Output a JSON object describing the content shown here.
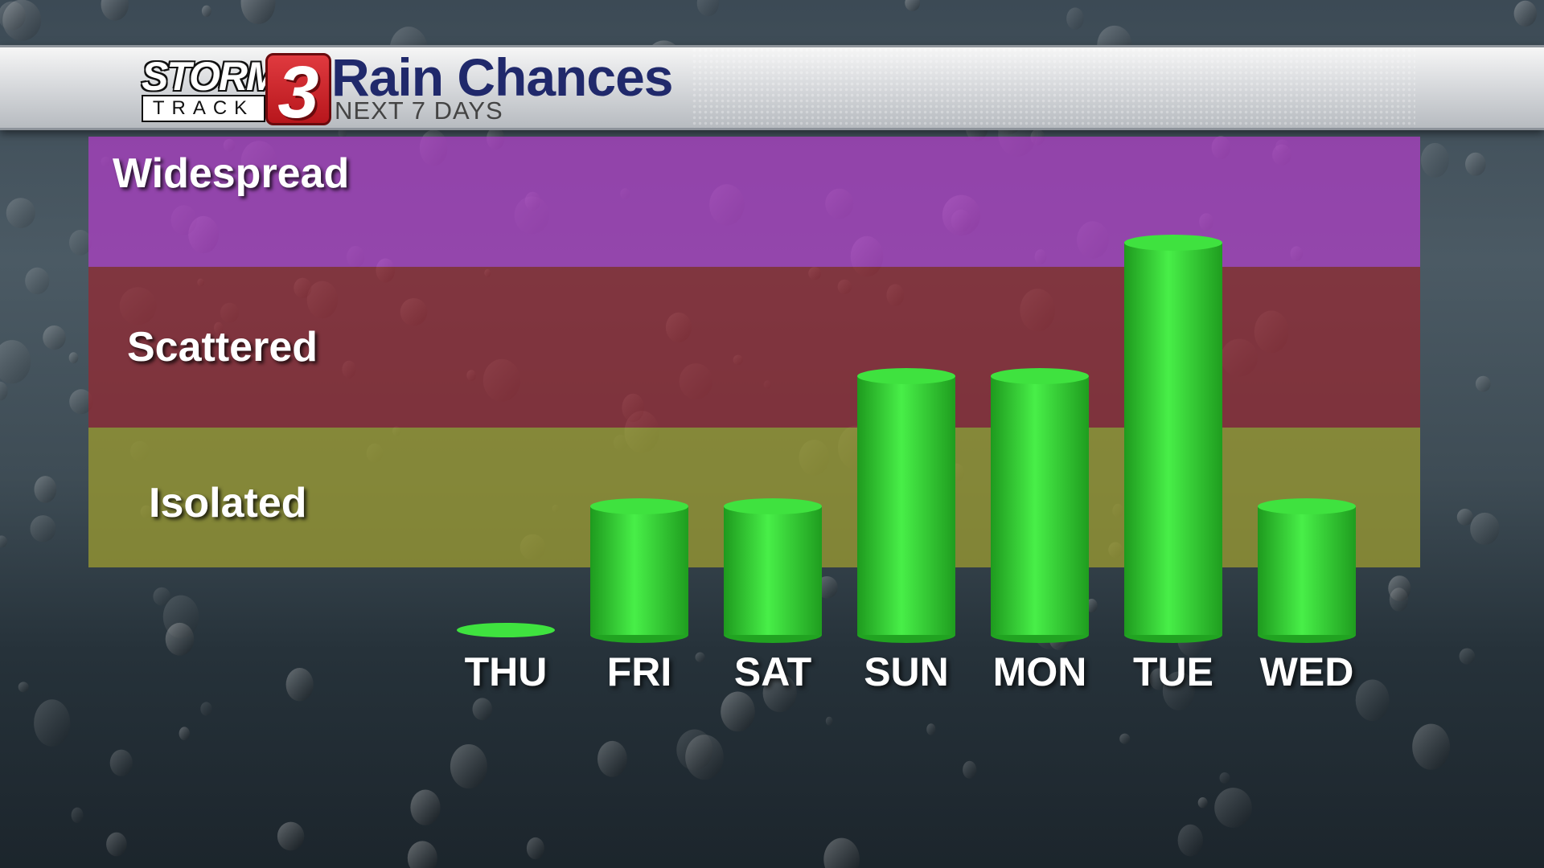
{
  "header": {
    "logo_top": "STORM",
    "logo_bottom": "TRACK",
    "logo_number": "3",
    "title": "Rain Chances",
    "subtitle": "NEXT 7 DAYS"
  },
  "chart_data": {
    "type": "bar",
    "categories": [
      "THU",
      "FRI",
      "SAT",
      "SUN",
      "MON",
      "TUE",
      "WED"
    ],
    "values": [
      0,
      1,
      1,
      2,
      2,
      3,
      1
    ],
    "value_scale_levels": [
      "Isolated",
      "Scattered",
      "Widespread"
    ],
    "title": "Rain Chances",
    "subtitle": "NEXT 7 DAYS",
    "ylim": [
      0,
      3
    ],
    "bar_color": "#3cdc3c",
    "band_colors": {
      "Widespread": "#b03ec8",
      "Scattered": "#962832",
      "Isolated": "#969632"
    },
    "grid": false
  }
}
